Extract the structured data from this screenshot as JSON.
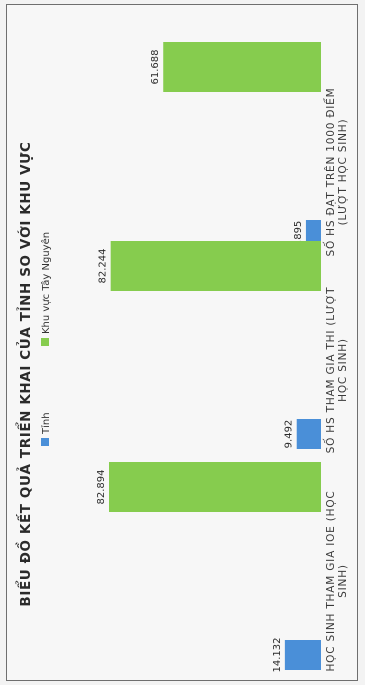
{
  "chart_data": {
    "type": "bar",
    "title": "BIỂU ĐỒ KẾT QUẢ TRIỂN KHAI CỦA TỈNH SO VỚI KHU VỰC",
    "categories": [
      [
        "HỌC SINH THAM GIA IOE (HỌC",
        "SINH)"
      ],
      [
        "SỐ HS THAM GIA THI (LƯỢT",
        "HỌC SINH)"
      ],
      [
        "SỐ HS ĐẠT TRÊN 1000 ĐIỂM",
        "(LƯỢT HỌC SINH)"
      ]
    ],
    "series": [
      {
        "name": "Tỉnh",
        "color": "#4a8fd8",
        "values": [
          14132,
          9492,
          5895
        ],
        "labels": [
          "14.132",
          "9.492",
          "5.895"
        ]
      },
      {
        "name": "Khu vực Tây Nguyên",
        "color": "#86cc4e",
        "values": [
          82894,
          82244,
          61688
        ],
        "labels": [
          "82.894",
          "82.244",
          "61.688"
        ]
      }
    ],
    "value_max": 90000,
    "grid": false,
    "legend_position": "top",
    "orientation": "rotated 90° counter-clockwise"
  }
}
